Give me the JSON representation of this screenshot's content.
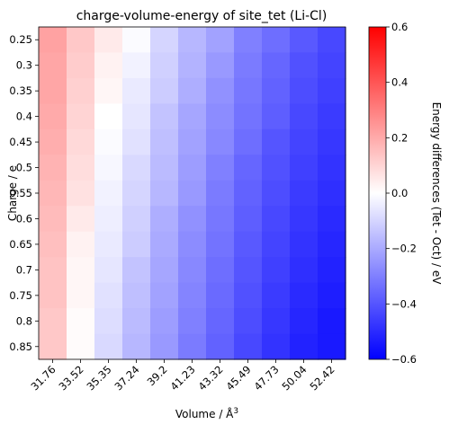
{
  "chart_data": {
    "type": "heatmap",
    "title": "charge-volume-energy of site_tet (Li-Cl)",
    "xlabel": "Volume / Å³",
    "ylabel": "Charge / e",
    "x_categories": [
      "31.76",
      "33.52",
      "35.35",
      "37.24",
      "39.2",
      "41.23",
      "43.32",
      "45.49",
      "47.73",
      "50.04",
      "52.42"
    ],
    "y_categories": [
      "0.25",
      "0.3",
      "0.35",
      "0.4",
      "0.45",
      "0.5",
      "0.55",
      "0.6",
      "0.65",
      "0.7",
      "0.75",
      "0.8",
      "0.85"
    ],
    "values": [
      [
        0.22,
        0.13,
        0.05,
        -0.01,
        -0.1,
        -0.17,
        -0.22,
        -0.3,
        -0.34,
        -0.39,
        -0.43
      ],
      [
        0.21,
        0.12,
        0.03,
        -0.03,
        -0.11,
        -0.18,
        -0.24,
        -0.31,
        -0.36,
        -0.41,
        -0.44
      ],
      [
        0.21,
        0.11,
        0.02,
        -0.05,
        -0.12,
        -0.19,
        -0.26,
        -0.32,
        -0.37,
        -0.42,
        -0.45
      ],
      [
        0.2,
        0.1,
        0.0,
        -0.06,
        -0.14,
        -0.21,
        -0.27,
        -0.33,
        -0.38,
        -0.43,
        -0.46
      ],
      [
        0.19,
        0.09,
        -0.01,
        -0.07,
        -0.15,
        -0.22,
        -0.28,
        -0.34,
        -0.4,
        -0.44,
        -0.47
      ],
      [
        0.18,
        0.08,
        -0.02,
        -0.09,
        -0.16,
        -0.23,
        -0.3,
        -0.36,
        -0.41,
        -0.45,
        -0.48
      ],
      [
        0.17,
        0.07,
        -0.03,
        -0.1,
        -0.17,
        -0.24,
        -0.31,
        -0.37,
        -0.42,
        -0.46,
        -0.49
      ],
      [
        0.16,
        0.05,
        -0.04,
        -0.11,
        -0.19,
        -0.26,
        -0.32,
        -0.38,
        -0.43,
        -0.47,
        -0.5
      ],
      [
        0.15,
        0.03,
        -0.05,
        -0.12,
        -0.2,
        -0.27,
        -0.33,
        -0.39,
        -0.44,
        -0.48,
        -0.51
      ],
      [
        0.14,
        0.02,
        -0.06,
        -0.14,
        -0.21,
        -0.28,
        -0.34,
        -0.4,
        -0.45,
        -0.49,
        -0.52
      ],
      [
        0.14,
        0.02,
        -0.07,
        -0.15,
        -0.22,
        -0.29,
        -0.35,
        -0.41,
        -0.46,
        -0.5,
        -0.53
      ],
      [
        0.13,
        0.01,
        -0.08,
        -0.16,
        -0.23,
        -0.3,
        -0.36,
        -0.42,
        -0.47,
        -0.51,
        -0.54
      ],
      [
        0.13,
        0.01,
        -0.09,
        -0.17,
        -0.24,
        -0.31,
        -0.37,
        -0.43,
        -0.48,
        -0.52,
        -0.54
      ]
    ],
    "colormap": "bwr",
    "colors": {
      "low": "#0000ff",
      "mid": "#ffffff",
      "high": "#ff0000"
    },
    "vmin": -0.6,
    "vmax": 0.6,
    "colorbar": {
      "label": "Energy differences (Tet - Oct) / eV",
      "ticks": [
        "0.6",
        "0.4",
        "0.2",
        "0.0",
        "−0.2",
        "−0.4",
        "−0.6"
      ]
    },
    "grid": false,
    "legend": "none"
  }
}
